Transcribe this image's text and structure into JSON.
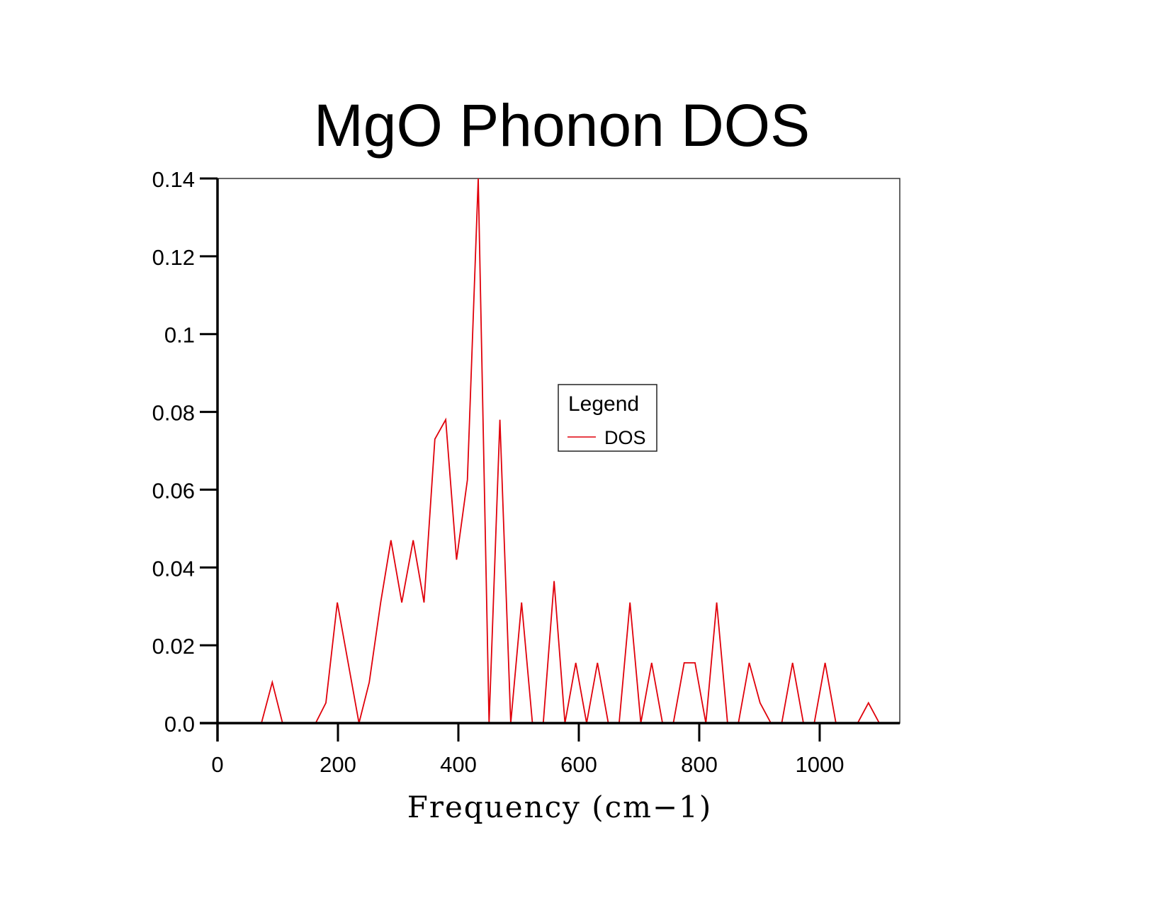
{
  "chart_data": {
    "type": "line",
    "title": "MgO Phonon DOS",
    "xlabel": "Frequency (cm−1)",
    "ylabel": "",
    "xlim": [
      0,
      1133
    ],
    "ylim": [
      0,
      0.14
    ],
    "xticks": [
      0,
      200,
      400,
      600,
      800,
      1000
    ],
    "xtick_labels": [
      "0",
      "200",
      "400",
      "600",
      "800",
      "1000"
    ],
    "yticks": [
      0,
      0.02,
      0.04,
      0.06,
      0.08,
      0.1,
      0.12,
      0.14
    ],
    "ytick_labels": [
      "0.0",
      "0.02",
      "0.04",
      "0.06",
      "0.08",
      "0.1",
      "0.12",
      "0.14"
    ],
    "grid": false,
    "legend": {
      "title": "Legend",
      "placement": "center-right",
      "entries": [
        "DOS"
      ]
    },
    "series": [
      {
        "name": "DOS",
        "color": "#e0000a",
        "x": [
          73,
          91,
          108,
          163,
          180,
          199,
          217,
          235,
          252,
          271,
          288,
          306,
          325,
          343,
          361,
          379,
          397,
          415,
          433,
          451,
          469,
          487,
          505,
          523,
          541,
          559,
          577,
          595,
          613,
          631,
          649,
          667,
          685,
          703,
          721,
          739,
          757,
          775,
          793,
          811,
          829,
          847,
          865,
          883,
          901,
          919,
          937,
          955,
          973,
          991,
          1009,
          1027,
          1063,
          1081,
          1099
        ],
        "y": [
          0,
          0.0105,
          0,
          0,
          0.0052,
          0.031,
          0.0155,
          0,
          0.0105,
          0.031,
          0.047,
          0.031,
          0.047,
          0.031,
          0.073,
          0.078,
          0.042,
          0.0625,
          0.14,
          0,
          0.078,
          0,
          0.031,
          0,
          0,
          0.0365,
          0,
          0.0155,
          0,
          0.0155,
          0,
          0,
          0.031,
          0,
          0.0155,
          0,
          0,
          0.0155,
          0.0155,
          0,
          0.031,
          0,
          0,
          0.0155,
          0.0052,
          0,
          0,
          0.0155,
          0,
          0,
          0.0155,
          0,
          0,
          0.0052,
          0
        ]
      }
    ]
  }
}
